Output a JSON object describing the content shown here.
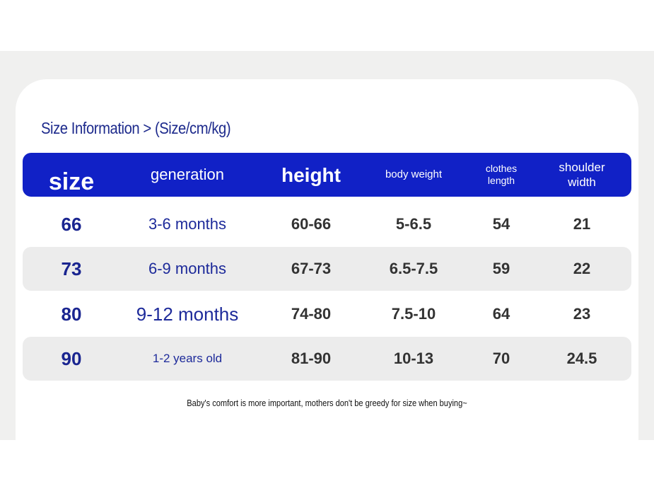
{
  "title": "Size Information > (Size/cm/kg)",
  "table": {
    "headers": [
      "size",
      "generation",
      "height",
      "body weight",
      "clothes length",
      "shoulder width"
    ],
    "rows": [
      [
        "66",
        "3-6 months",
        "60-66",
        "5-6.5",
        "54",
        "21"
      ],
      [
        "73",
        "6-9 months",
        "67-73",
        "6.5-7.5",
        "59",
        "22"
      ],
      [
        "80",
        "9-12 months",
        "74-80",
        "7.5-10",
        "64",
        "23"
      ],
      [
        "90",
        "1-2 years old",
        "81-90",
        "10-13",
        "70",
        "24.5"
      ]
    ]
  },
  "footer": "Baby's comfort is more important, mothers don't be greedy for size when buying~"
}
